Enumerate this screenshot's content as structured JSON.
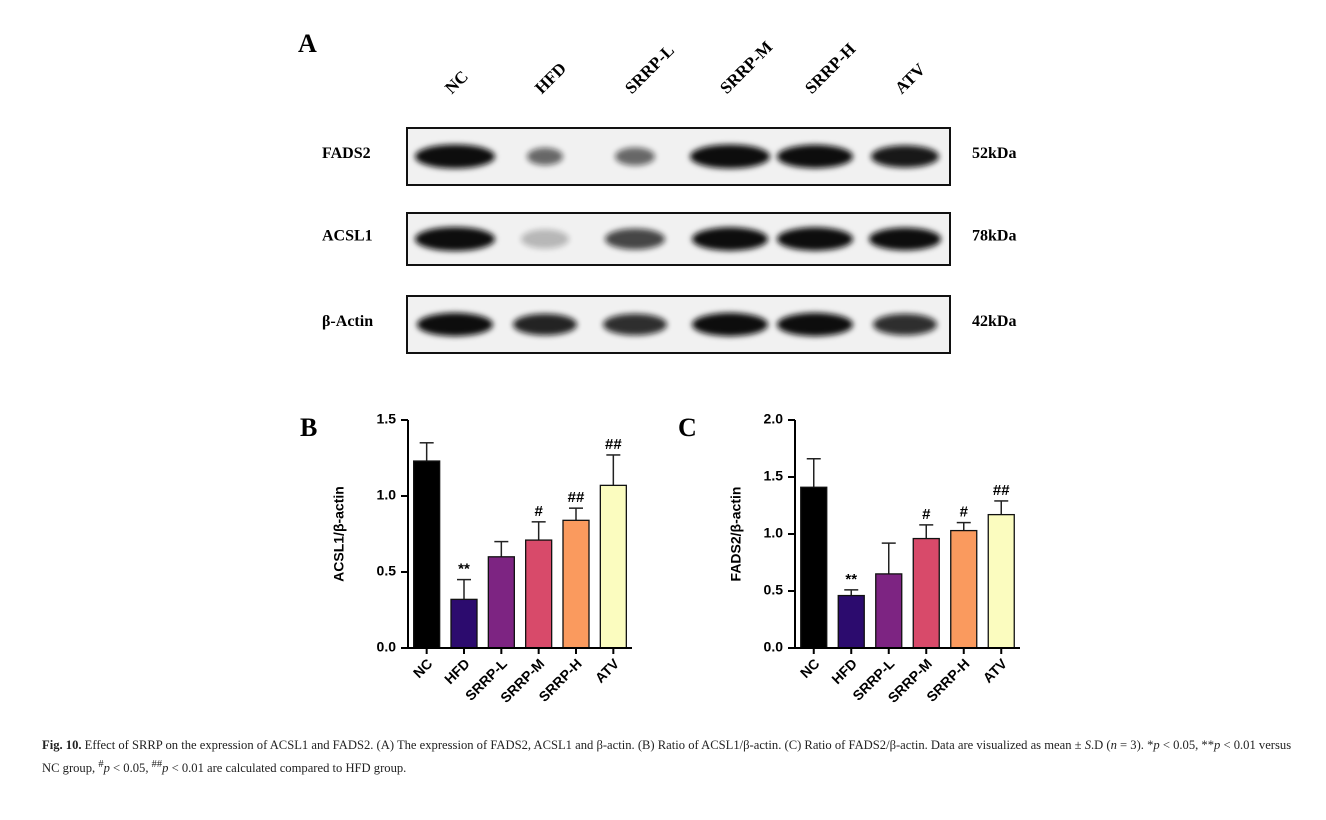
{
  "blot": {
    "panel": "A",
    "lanes": [
      "NC",
      "HFD",
      "SRRP-L",
      "SRRP-M",
      "SRRP-H",
      "ATV"
    ],
    "rows": [
      {
        "name": "FADS2",
        "size": "52kDa"
      },
      {
        "name": "ACSL1",
        "size": "78kDa"
      },
      {
        "name": "β-Actin",
        "size": "42kDa"
      }
    ]
  },
  "chart_data": [
    {
      "type": "bar",
      "panel": "B",
      "y_label": "ACSL1/β-actin",
      "categories": [
        "NC",
        "HFD",
        "SRRP-L",
        "SRRP-M",
        "SRRP-H",
        "ATV"
      ],
      "values": [
        1.23,
        0.32,
        0.6,
        0.71,
        0.84,
        1.07
      ],
      "errors": [
        0.12,
        0.13,
        0.1,
        0.12,
        0.08,
        0.2
      ],
      "annotations": [
        null,
        "**",
        null,
        "#",
        "##",
        "##"
      ],
      "colors": [
        "#000000",
        "#2c0b6e",
        "#7d2482",
        "#d84a6a",
        "#fa9a5e",
        "#fbfcbf"
      ],
      "ylim": [
        0,
        1.5
      ],
      "yticks": [
        {
          "value": 0,
          "label": "0.0"
        },
        {
          "value": 0.5,
          "label": "0.5"
        },
        {
          "value": 1,
          "label": "1.0"
        },
        {
          "value": 1.5,
          "label": "1.5"
        }
      ]
    },
    {
      "type": "bar",
      "panel": "C",
      "y_label": "FADS2/β-actin",
      "categories": [
        "NC",
        "HFD",
        "SRRP-L",
        "SRRP-M",
        "SRRP-H",
        "ATV"
      ],
      "values": [
        1.41,
        0.46,
        0.65,
        0.96,
        1.03,
        1.17
      ],
      "errors": [
        0.25,
        0.05,
        0.27,
        0.12,
        0.07,
        0.12
      ],
      "annotations": [
        null,
        "**",
        null,
        "#",
        "#",
        "##"
      ],
      "colors": [
        "#000000",
        "#2c0b6e",
        "#7d2482",
        "#d84a6a",
        "#fa9a5e",
        "#fbfcbf"
      ],
      "ylim": [
        0,
        2
      ],
      "yticks": [
        {
          "value": 0,
          "label": "0.0"
        },
        {
          "value": 0.5,
          "label": "0.5"
        },
        {
          "value": 1,
          "label": "1.0"
        },
        {
          "value": 1.5,
          "label": "1.5"
        },
        {
          "value": 2,
          "label": "2.0"
        }
      ]
    }
  ],
  "caption": {
    "label": "Fig. 10.",
    "parts": [
      " Effect of SRRP on the expression of ACSL1 and FADS2. (A) The expression of FADS2, ACSL1 and β-actin. (B) Ratio of ACSL1/β-actin. (C) Ratio of FADS2/β-actin. Data are visualized as mean ± ",
      "S",
      ".D (",
      "n",
      " = 3). *",
      "p",
      " < 0.05, **",
      "p",
      " < 0.01 versus NC group, ",
      "#",
      "p",
      " < 0.05, ",
      "##",
      "p",
      " < 0.01 are calculated compared to HFD group."
    ]
  }
}
